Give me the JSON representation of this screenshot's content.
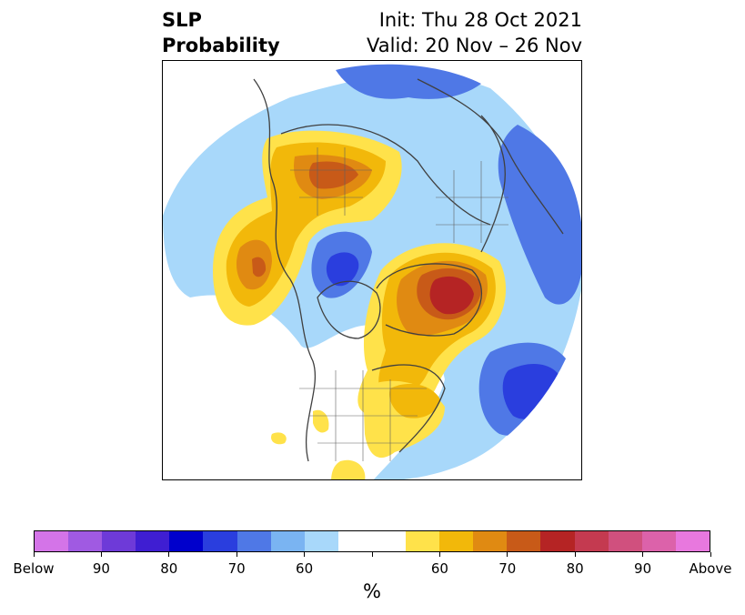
{
  "header": {
    "title_line1": "SLP",
    "title_line2": "Probability",
    "init": "Init: Thu 28 Oct 2021",
    "valid": "Valid: 20 Nov – 26 Nov"
  },
  "legend": {
    "unit": "%",
    "colors": [
      "#d474e8",
      "#a05ae2",
      "#6e3ad8",
      "#3f1ed2",
      "#0000cc",
      "#2a3ede",
      "#4f78e6",
      "#7ab4f2",
      "#a8d8fa",
      "#ffffff",
      "#ffffff",
      "#ffe24a",
      "#f2b80a",
      "#e08a12",
      "#c85a18",
      "#b52424",
      "#c43a50",
      "#d0507e",
      "#dc62aa",
      "#e878de"
    ],
    "tick_labels": [
      "Below",
      "90",
      "80",
      "70",
      "60",
      "",
      "60",
      "70",
      "80",
      "90",
      "Above"
    ]
  }
}
